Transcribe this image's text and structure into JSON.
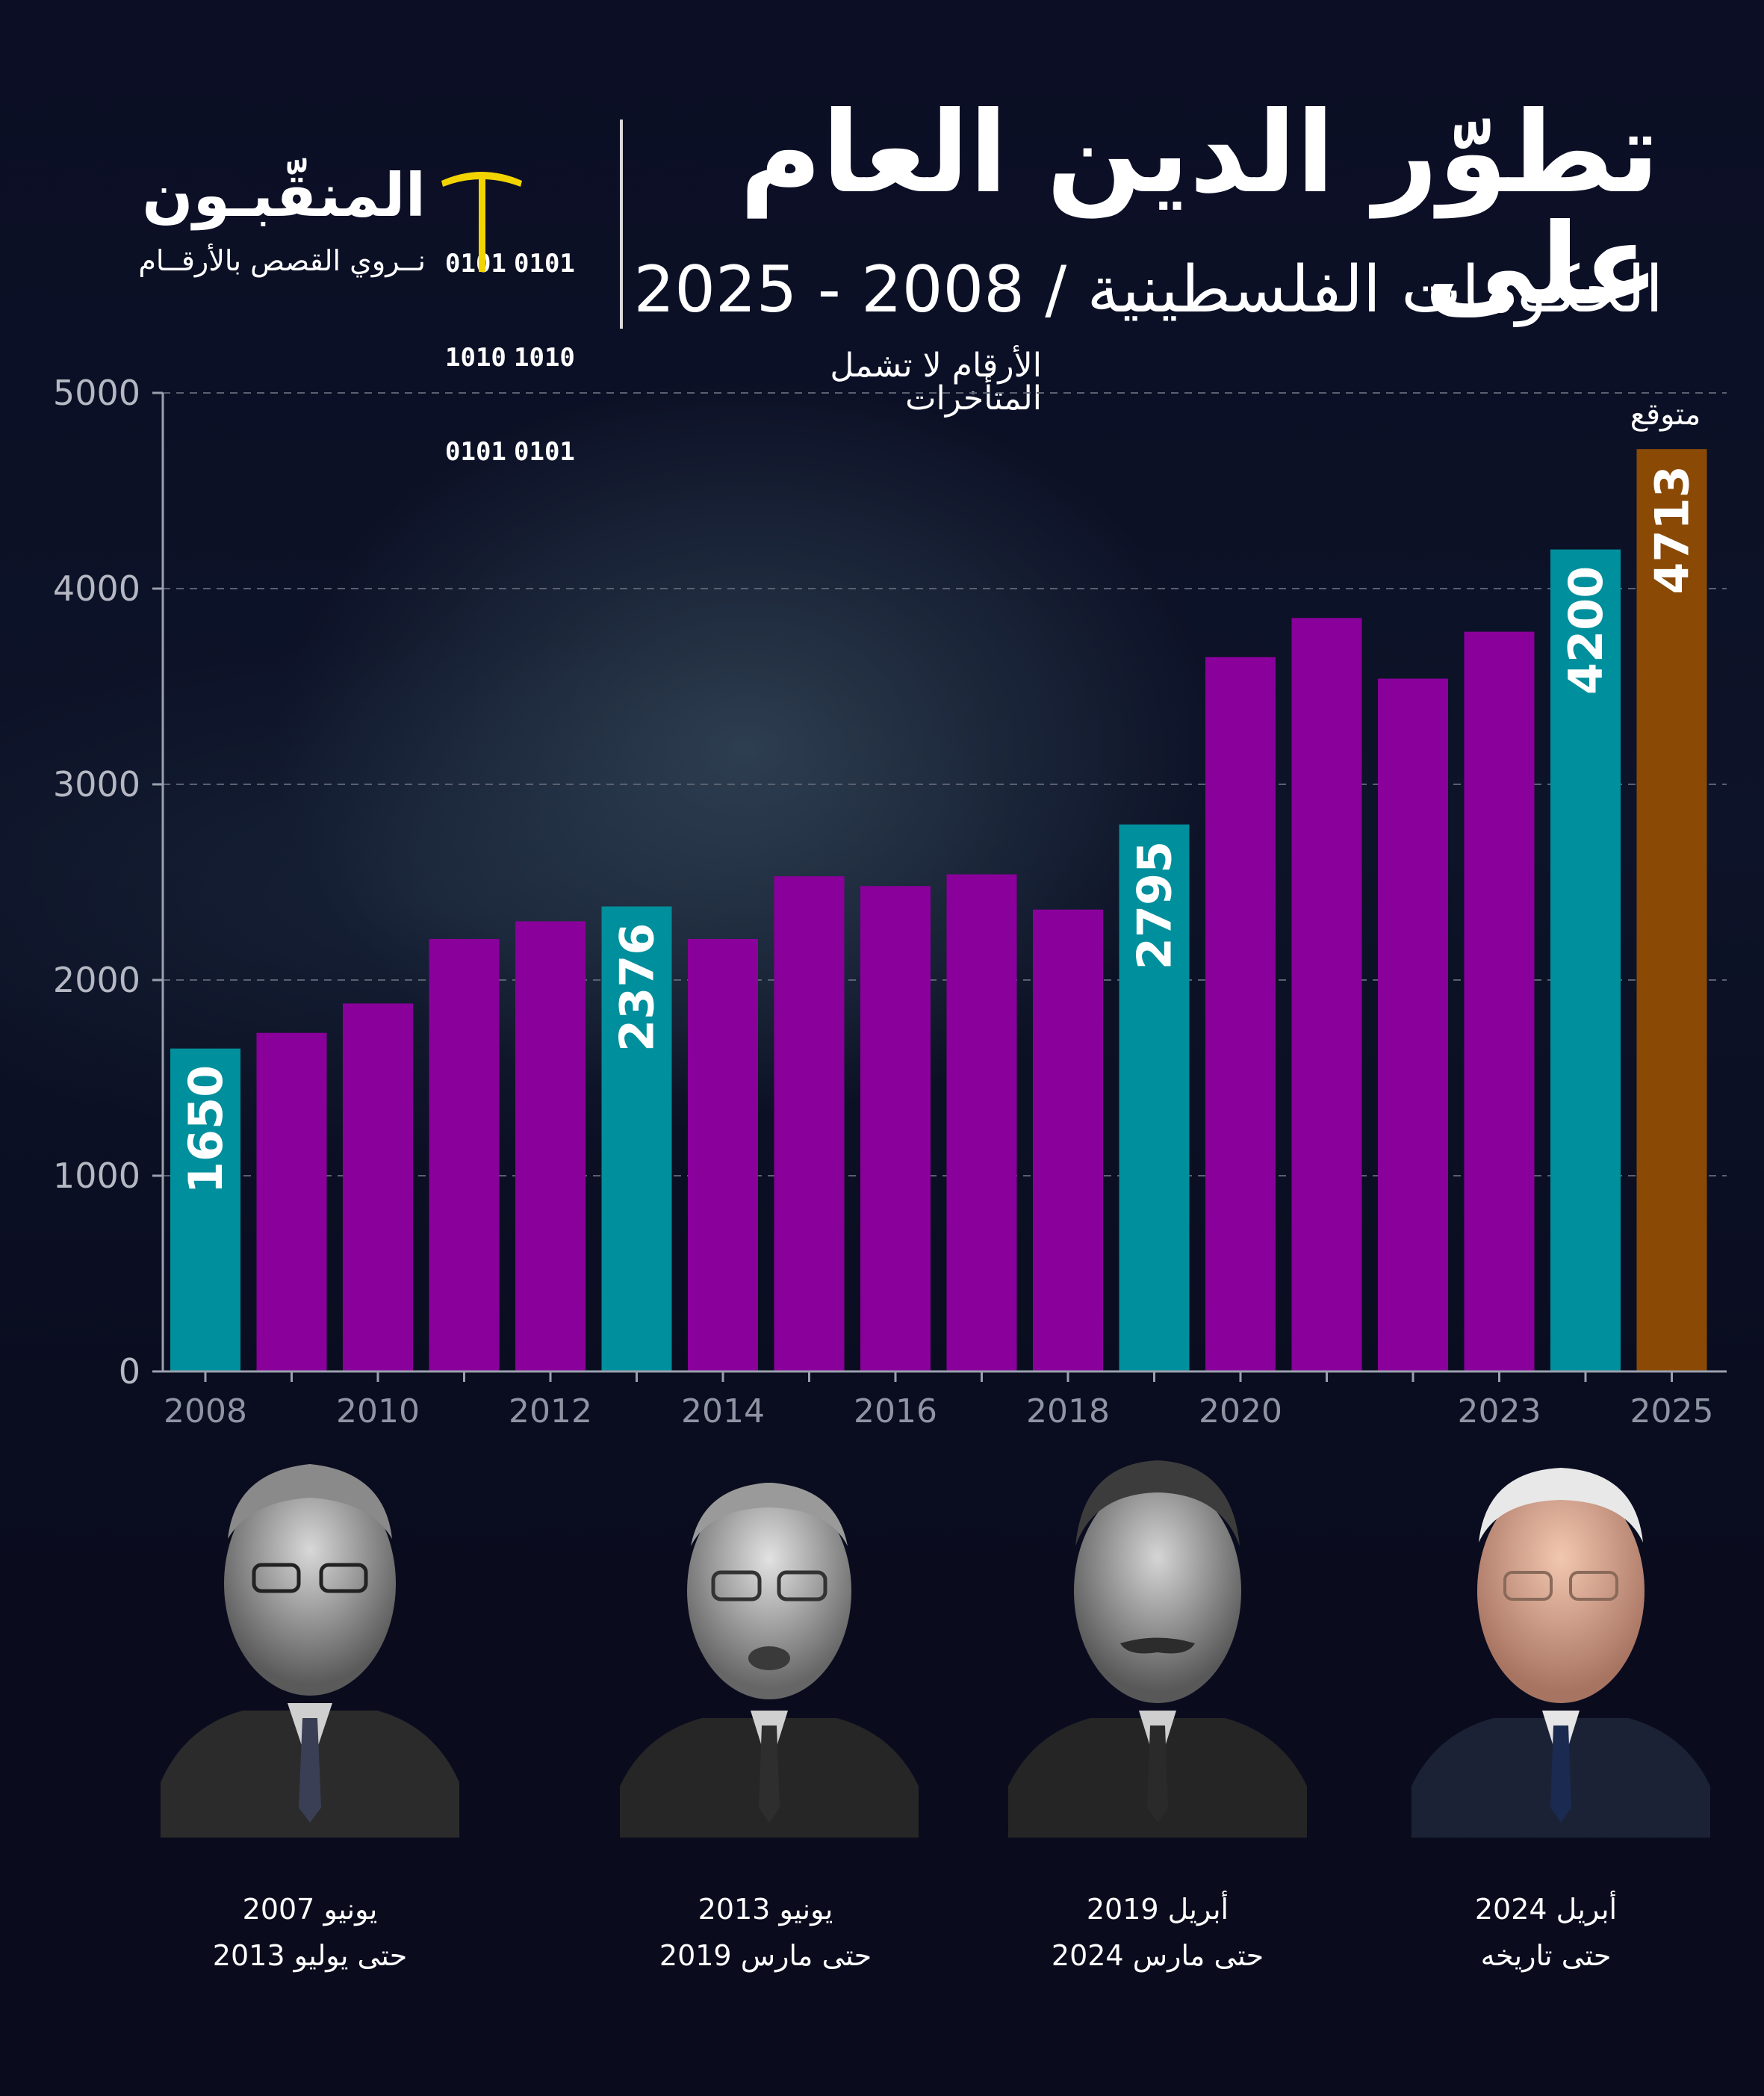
{
  "header": {
    "title_line1": "تطوّر الدين العام على",
    "title_line2": "الحكومات الفلسطينية / 2008 - 2025",
    "subtitle": "الأرقام لا تشمل المتأخرات"
  },
  "brand": {
    "name": "المنقّبـون",
    "tagline": "نــروي القصص بالأرقــام",
    "binary_left": [
      "0101",
      "1010",
      "0101"
    ],
    "binary_right": [
      "0101",
      "1010",
      "0101"
    ],
    "logo_icon": "pickaxe-icon",
    "accent_color": "#f2d400"
  },
  "colors": {
    "bar_default": "#8a009b",
    "bar_highlight": "#008f9c",
    "bar_forecast": "#8a4a05"
  },
  "chart_data": {
    "type": "bar",
    "categories": [
      "2008",
      "2009",
      "2010",
      "2011",
      "2012",
      "2013",
      "2014",
      "2015",
      "2016",
      "2017",
      "2018",
      "2019",
      "2020",
      "2021",
      "2022",
      "2023",
      "2024",
      "2025"
    ],
    "values": [
      1650,
      1730,
      1880,
      2210,
      2300,
      2376,
      2210,
      2530,
      2480,
      2540,
      2360,
      2795,
      3650,
      3850,
      3540,
      3780,
      4200,
      4713
    ],
    "highlight_indices": [
      0,
      5,
      11,
      16
    ],
    "forecast_indices": [
      17
    ],
    "data_labels": {
      "0": "1650",
      "5": "2376",
      "11": "2795",
      "16": "4200",
      "17": "4713"
    },
    "forecast_label": "متوقع",
    "ylim": [
      0,
      5000
    ],
    "yticks": [
      "0",
      "1000",
      "2000",
      "3000",
      "4000",
      "5000"
    ],
    "xtick_labels": [
      "2008",
      "",
      "2010",
      "",
      "2012",
      "",
      "2014",
      "",
      "2016",
      "",
      "2018",
      "",
      "2020",
      "",
      "",
      "2023",
      "",
      "2025"
    ],
    "grid": true
  },
  "prime_ministers": [
    {
      "name_icon": "prime-minister-portrait-1",
      "start": "يونيو 2007",
      "end": "حتى يوليو 2013"
    },
    {
      "name_icon": "prime-minister-portrait-2",
      "start": "يونيو 2013",
      "end": "حتى مارس 2019"
    },
    {
      "name_icon": "prime-minister-portrait-3",
      "start": "أبريل 2019",
      "end": "حتى مارس 2024"
    },
    {
      "name_icon": "prime-minister-portrait-4",
      "start": "أبريل 2024",
      "end": "حتى تاريخه"
    }
  ]
}
